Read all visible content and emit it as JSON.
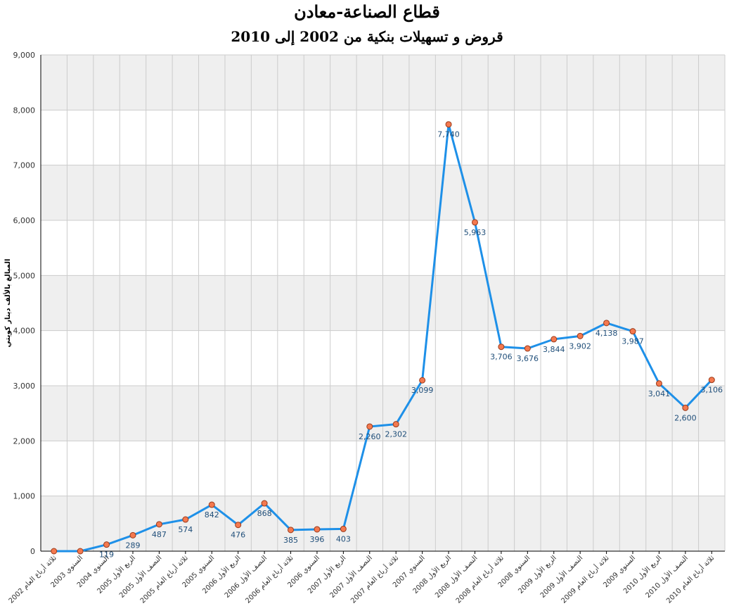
{
  "chart_data": {
    "type": "line",
    "title": "قطاع الصناعة-معادن",
    "subtitle": "قروض و تسهيلات بنكية من 2002 إلى 2010",
    "ylabel": "المبالغ بالألف دينار كويتي",
    "xlabel": "",
    "ylim": [
      0,
      9000
    ],
    "yticks": [
      "0",
      "1,000",
      "2,000",
      "3,000",
      "4,000",
      "5,000",
      "6,000",
      "7,000",
      "8,000",
      "9,000"
    ],
    "categories": [
      "ثلاثة أرباع العام 2002",
      "السنوي 2003",
      "السنوي 2004",
      "الربع الأول 2005",
      "النصف الأول 2005",
      "ثلاثة أرباع العام 2005",
      "السنوي 2005",
      "الربع الأول 2006",
      "النصف الأول 2006",
      "ثلاثة أرباع العام 2006",
      "السنوي 2006",
      "الربع الأول 2007",
      "النصف الأول 2007",
      "ثلاثة أرباع العام 2007",
      "السنوي 2007",
      "الربع الأول 2008",
      "النصف الأول 2008",
      "ثلاثة أرباع العام 2008",
      "السنوي 2008",
      "الربع الأول 2009",
      "النصف الأول 2009",
      "ثلاثة أرباع العام 2009",
      "السنوي 2009",
      "الربع الأول 2010",
      "النصف الأول 2010",
      "ثلاثة أرباع العام 2010"
    ],
    "series": [
      {
        "values": [
          0,
          0,
          119,
          289,
          487,
          574,
          842,
          476,
          868,
          385,
          396,
          403,
          2260,
          2302,
          3099,
          7740,
          5963,
          3706,
          3676,
          3844,
          3902,
          4138,
          3987,
          3041,
          2600,
          3106
        ],
        "labels": [
          "",
          "",
          "119",
          "289",
          "487",
          "574",
          "842",
          "476",
          "868",
          "385",
          "396",
          "403",
          "2,260",
          "2,302",
          "3,099",
          "7,740",
          "5,963",
          "3,706",
          "3,676",
          "3,844",
          "3,902",
          "4,138",
          "3,987",
          "3,041",
          "2,600",
          "3,106"
        ],
        "color": "#1e90e8"
      }
    ],
    "marker_color": "#f4794f",
    "label_color": "#1f4e79",
    "grid": true,
    "band_color": "#efefef"
  }
}
